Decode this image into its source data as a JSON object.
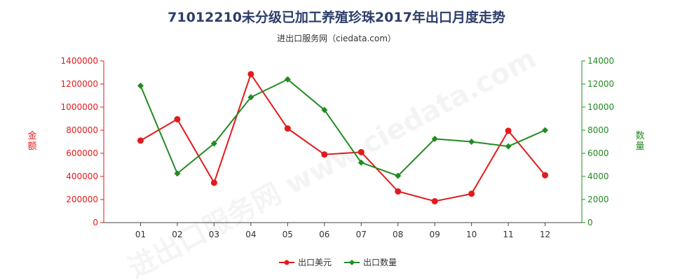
{
  "title": "71012210未分级已加工养殖珍珠2017年出口月度走势",
  "subtitle": "进出口服务网（ciedata.com）",
  "watermark": "进出口服务网 www.ciedata.com",
  "colors": {
    "left_axis": "#e31a1c",
    "right_axis": "#228b22",
    "series_amount": "#e31a1c",
    "series_quantity": "#228b22",
    "title": "#2c3e69"
  },
  "chart_data": {
    "type": "line",
    "categories": [
      "01",
      "02",
      "03",
      "04",
      "05",
      "06",
      "07",
      "08",
      "09",
      "10",
      "11",
      "12"
    ],
    "left_axis": {
      "label": "金额",
      "range": [
        0,
        1400000
      ],
      "ticks": [
        "0",
        "200000",
        "400000",
        "600000",
        "800000",
        "1000000",
        "1200000",
        "1400000"
      ]
    },
    "right_axis": {
      "label": "数量",
      "range": [
        0,
        14000
      ],
      "ticks": [
        "0",
        "2000",
        "4000",
        "6000",
        "8000",
        "10000",
        "12000",
        "14000"
      ]
    },
    "series": [
      {
        "name": "出口美元",
        "axis": "left",
        "values": [
          710000,
          895000,
          345000,
          1285000,
          815000,
          590000,
          610000,
          270000,
          185000,
          250000,
          795000,
          410000
        ]
      },
      {
        "name": "出口数量",
        "axis": "right",
        "values": [
          11850,
          4250,
          6850,
          10850,
          12400,
          9750,
          5200,
          4050,
          7250,
          7000,
          6600,
          8000
        ]
      }
    ],
    "legend_position": "bottom-center",
    "grid": false
  }
}
